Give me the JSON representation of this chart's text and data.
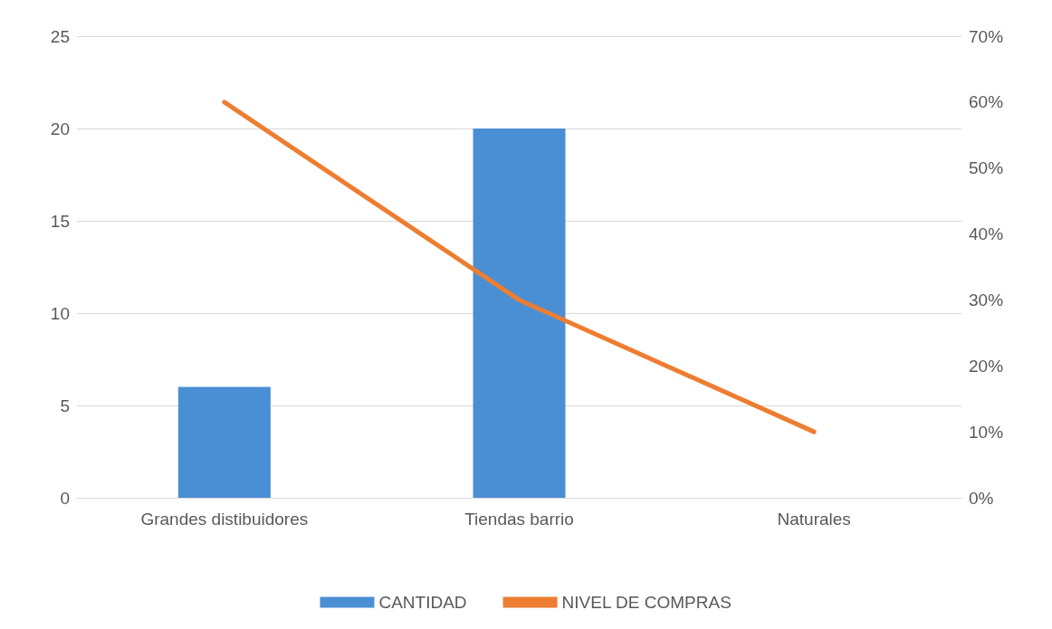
{
  "chart_data": {
    "type": "bar",
    "categories": [
      "Grandes distibuidores",
      "Tiendas barrio",
      "Naturales"
    ],
    "series": [
      {
        "name": "CANTIDAD",
        "color": "#4a8fd4",
        "values": [
          6,
          20,
          0
        ]
      },
      {
        "name": "NIVEL DE COMPRAS",
        "type": "line",
        "axis": "y2",
        "color": "#ed7d31",
        "values": [
          60,
          30,
          10
        ]
      }
    ],
    "ylim": [
      0,
      25
    ],
    "yticks": [
      0,
      5,
      10,
      15,
      20,
      25
    ],
    "y2lim": [
      0,
      70
    ],
    "y2ticks": [
      {
        "value": 0,
        "label": "0%"
      },
      {
        "value": 10,
        "label": "10%"
      },
      {
        "value": 20,
        "label": "20%"
      },
      {
        "value": 30,
        "label": "30%"
      },
      {
        "value": 40,
        "label": "40%"
      },
      {
        "value": 50,
        "label": "50%"
      },
      {
        "value": 60,
        "label": "60%"
      },
      {
        "value": 70,
        "label": "70%"
      }
    ],
    "grid": "y",
    "legend": "bottom",
    "marker": "none",
    "line_style": "solid"
  }
}
